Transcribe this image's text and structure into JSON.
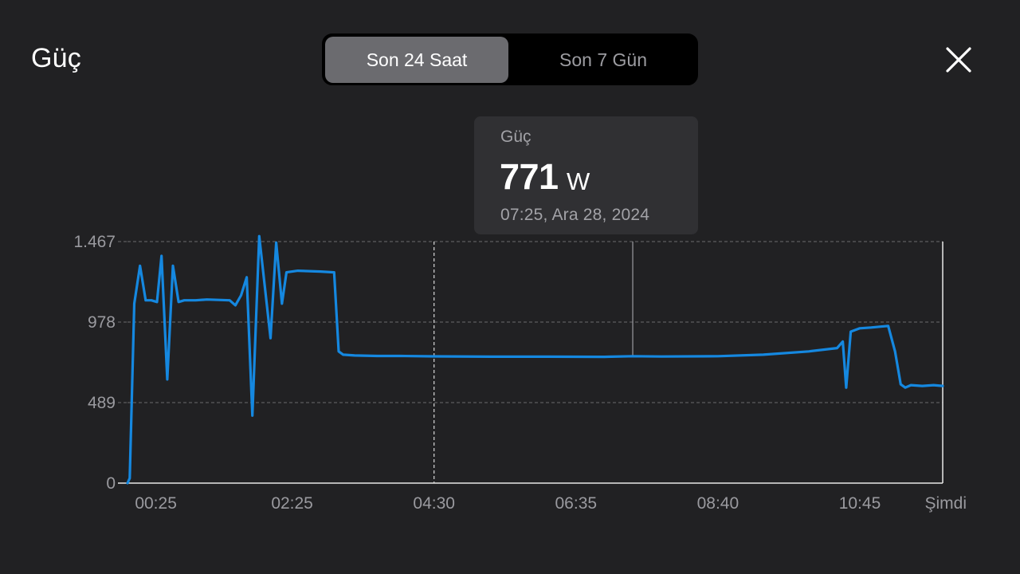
{
  "header": {
    "title": "Güç",
    "tabs": [
      {
        "label": "Son 24 Saat",
        "active": true
      },
      {
        "label": "Son 7 Gün",
        "active": false
      }
    ],
    "close_icon": "close-icon"
  },
  "tooltip": {
    "label": "Güç",
    "value": "771",
    "unit": "W",
    "date": "07:25, Ara 28, 2024"
  },
  "colors": {
    "background": "#212123",
    "line": "#1588e0",
    "grid": "#6a6a6e",
    "axis": "#e8e8e8",
    "text_muted": "#9a9a9f"
  },
  "chart_data": {
    "type": "line",
    "title": "",
    "xlabel": "",
    "ylabel": "",
    "ylim": [
      0,
      1467
    ],
    "y_ticks": [
      {
        "value": 0,
        "label": "0"
      },
      {
        "value": 489,
        "label": "489"
      },
      {
        "value": 978,
        "label": "978"
      },
      {
        "value": 1467,
        "label": "1.467"
      }
    ],
    "xlim": [
      0,
      718
    ],
    "x_ticks": [
      {
        "value": 25,
        "label": "00:25"
      },
      {
        "value": 145,
        "label": "02:25"
      },
      {
        "value": 270,
        "label": "04:30"
      },
      {
        "value": 395,
        "label": "06:35"
      },
      {
        "value": 520,
        "label": "08:40"
      },
      {
        "value": 645,
        "label": "10:45"
      },
      {
        "value": 718,
        "label": "Şimdi"
      }
    ],
    "grid": "horizontal dashed",
    "markers": [
      {
        "x": 270,
        "style": "dashed"
      },
      {
        "x": 445,
        "style": "solid",
        "note": "selected point"
      }
    ],
    "series": [
      {
        "values": [
          [
            0,
            0
          ],
          [
            2,
            30
          ],
          [
            6,
            1090
          ],
          [
            11,
            1320
          ],
          [
            16,
            1110
          ],
          [
            21,
            1110
          ],
          [
            26,
            1100
          ],
          [
            30,
            1380
          ],
          [
            35,
            630
          ],
          [
            40,
            1320
          ],
          [
            45,
            1100
          ],
          [
            50,
            1110
          ],
          [
            60,
            1110
          ],
          [
            70,
            1115
          ],
          [
            90,
            1110
          ],
          [
            95,
            1080
          ],
          [
            100,
            1140
          ],
          [
            105,
            1250
          ],
          [
            110,
            410
          ],
          [
            116,
            1500
          ],
          [
            126,
            880
          ],
          [
            131,
            1460
          ],
          [
            136,
            1090
          ],
          [
            140,
            1280
          ],
          [
            150,
            1290
          ],
          [
            170,
            1285
          ],
          [
            182,
            1280
          ],
          [
            186,
            800
          ],
          [
            190,
            780
          ],
          [
            200,
            775
          ],
          [
            220,
            772
          ],
          [
            240,
            772
          ],
          [
            270,
            770
          ],
          [
            320,
            768
          ],
          [
            370,
            768
          ],
          [
            420,
            767
          ],
          [
            445,
            771
          ],
          [
            470,
            769
          ],
          [
            520,
            771
          ],
          [
            560,
            780
          ],
          [
            600,
            800
          ],
          [
            625,
            820
          ],
          [
            630,
            860
          ],
          [
            633,
            580
          ],
          [
            637,
            920
          ],
          [
            645,
            940
          ],
          [
            655,
            945
          ],
          [
            670,
            955
          ],
          [
            676,
            800
          ],
          [
            681,
            600
          ],
          [
            685,
            580
          ],
          [
            690,
            595
          ],
          [
            700,
            590
          ],
          [
            710,
            595
          ],
          [
            718,
            590
          ]
        ]
      }
    ]
  }
}
